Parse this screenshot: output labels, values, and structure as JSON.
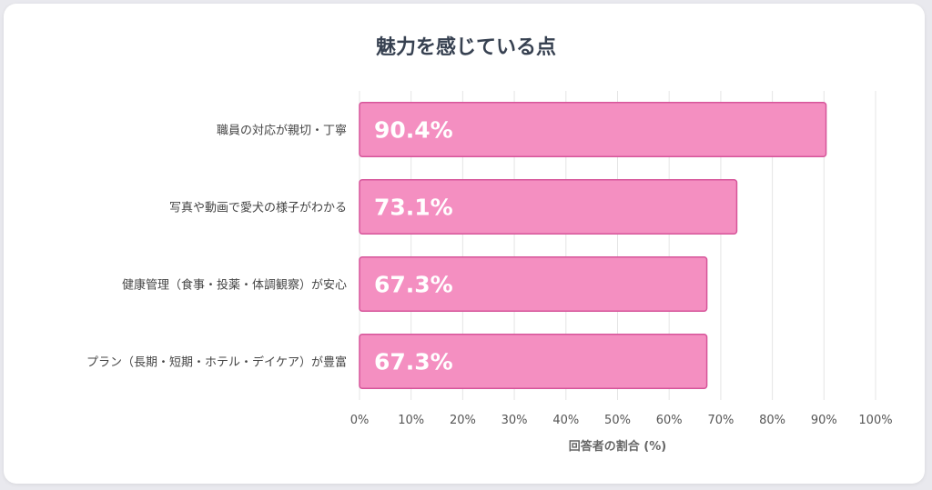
{
  "chart_data": {
    "type": "bar",
    "orientation": "horizontal",
    "title": "魅力を感じている点",
    "xlabel": "回答者の割合 (%)",
    "ylabel": "",
    "xlim": [
      0,
      100
    ],
    "x_ticks": [
      "0%",
      "10%",
      "20%",
      "30%",
      "40%",
      "50%",
      "60%",
      "70%",
      "80%",
      "90%",
      "100%"
    ],
    "categories": [
      "職員の対応が親切・丁寧",
      "写真や動画で愛犬の様子がわかる",
      "健康管理（食事・投薬・体調観察）が安心",
      "プラン（長期・短期・ホテル・デイケア）が豊富"
    ],
    "values": [
      90.4,
      73.1,
      67.3,
      67.3
    ],
    "data_labels": [
      "90.4%",
      "73.1%",
      "67.3%",
      "67.3%"
    ],
    "grid": true,
    "legend": "none",
    "colors": {
      "bar_fill": "#f48fc1",
      "bar_stroke": "#d6559a",
      "grid": "#e5e5e5",
      "title": "#374151"
    }
  }
}
